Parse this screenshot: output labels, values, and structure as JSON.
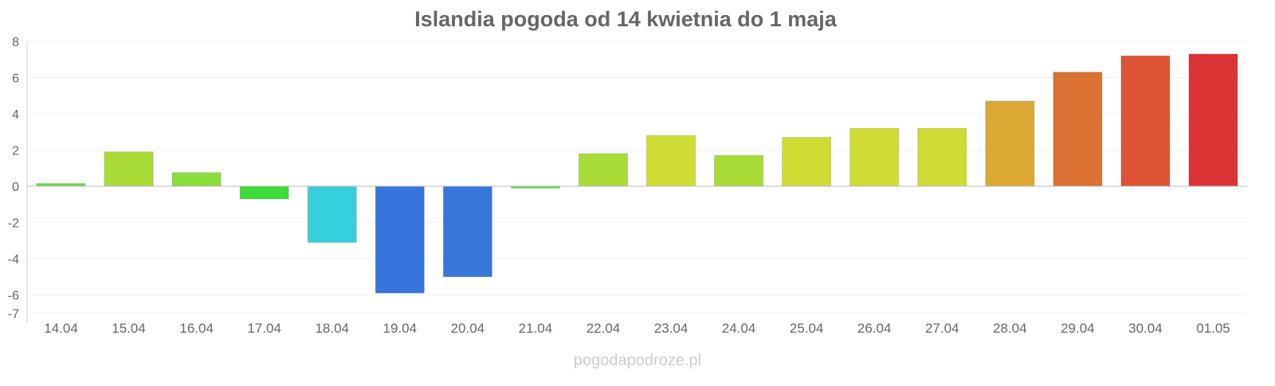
{
  "chart_data": {
    "type": "bar",
    "title": "Islandia pogoda od 14 kwietnia do 1 maja",
    "xlabel": "",
    "ylabel": "",
    "ylim": [
      -7,
      8
    ],
    "yticks": [
      8,
      6,
      4,
      2,
      0,
      -2,
      -4,
      -6,
      -7
    ],
    "grid": true,
    "categories": [
      "14.04",
      "15.04",
      "16.04",
      "17.04",
      "18.04",
      "19.04",
      "20.04",
      "21.04",
      "22.04",
      "23.04",
      "24.04",
      "25.04",
      "26.04",
      "27.04",
      "28.04",
      "29.04",
      "30.04",
      "01.05"
    ],
    "values": [
      0.15,
      1.9,
      0.75,
      -0.7,
      -3.1,
      -5.9,
      -5.0,
      -0.1,
      1.8,
      2.8,
      1.7,
      2.7,
      3.2,
      3.2,
      4.7,
      6.3,
      7.2,
      7.3
    ],
    "colors": [
      "#6ad84a",
      "#a9dc36",
      "#8ade3c",
      "#3cdc3a",
      "#36cfdc",
      "#3575dc",
      "#3677dc",
      "#5cd845",
      "#a9dc36",
      "#d0dc34",
      "#a9dc36",
      "#d0dc34",
      "#d0dc34",
      "#d0dc34",
      "#dca834",
      "#dc7134",
      "#dc5434",
      "#dc3434"
    ],
    "watermark": "pogodapodroze.pl"
  }
}
